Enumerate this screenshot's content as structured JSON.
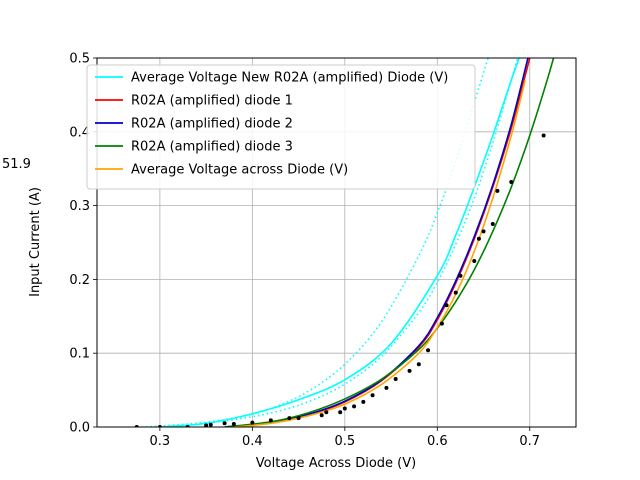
{
  "chart_data": {
    "type": "line",
    "title": "",
    "xlabel": "Voltage Across Diode (V)",
    "ylabel": "Input Current (A)",
    "side_annotation": "51.9",
    "xlim": [
      0.232,
      0.75
    ],
    "ylim": [
      0,
      0.5
    ],
    "xticks": [
      "0.3",
      "0.4",
      "0.5",
      "0.6",
      "0.7"
    ],
    "yticks": [
      "0.0",
      "0.1",
      "0.2",
      "0.3",
      "0.4",
      "0.5"
    ],
    "grid": true,
    "legend_position": "upper-left",
    "series": [
      {
        "name": "Average Voltage New R02A (amplified) Diode (V)",
        "color": "#00ffff",
        "style": "solid",
        "x": [
          0.3,
          0.35,
          0.4,
          0.45,
          0.5,
          0.55,
          0.6,
          0.62,
          0.64,
          0.66,
          0.68,
          0.69
        ],
        "y": [
          0.0,
          0.005,
          0.018,
          0.037,
          0.064,
          0.113,
          0.205,
          0.26,
          0.325,
          0.395,
          0.47,
          0.505
        ]
      },
      {
        "name": "R02A (amplified) diode 1",
        "color": "#ff0000",
        "style": "solid",
        "x": [
          0.38,
          0.42,
          0.46,
          0.5,
          0.54,
          0.58,
          0.6,
          0.62,
          0.64,
          0.66,
          0.68,
          0.7
        ],
        "y": [
          0.0,
          0.006,
          0.016,
          0.034,
          0.063,
          0.108,
          0.145,
          0.195,
          0.255,
          0.325,
          0.405,
          0.5
        ]
      },
      {
        "name": "R02A (amplified) diode 2",
        "color": "#0000cc",
        "style": "solid",
        "x": [
          0.38,
          0.42,
          0.46,
          0.5,
          0.54,
          0.58,
          0.6,
          0.62,
          0.64,
          0.66,
          0.68,
          0.698
        ],
        "y": [
          0.0,
          0.006,
          0.017,
          0.035,
          0.064,
          0.11,
          0.148,
          0.198,
          0.258,
          0.328,
          0.41,
          0.5
        ]
      },
      {
        "name": "R02A (amplified) diode 3",
        "color": "#008000",
        "style": "solid",
        "x": [
          0.37,
          0.42,
          0.46,
          0.5,
          0.54,
          0.58,
          0.6,
          0.62,
          0.64,
          0.66,
          0.68,
          0.7,
          0.72,
          0.73
        ],
        "y": [
          0.0,
          0.007,
          0.019,
          0.038,
          0.065,
          0.105,
          0.134,
          0.17,
          0.213,
          0.265,
          0.325,
          0.395,
          0.475,
          0.52
        ]
      },
      {
        "name": "Average Voltage across Diode (V)",
        "color": "#ffa500",
        "style": "solid",
        "x": [
          0.38,
          0.42,
          0.46,
          0.5,
          0.54,
          0.58,
          0.6,
          0.62,
          0.64,
          0.66,
          0.68,
          0.695
        ],
        "y": [
          0.0,
          0.005,
          0.015,
          0.031,
          0.058,
          0.1,
          0.135,
          0.18,
          0.238,
          0.31,
          0.395,
          0.47
        ]
      },
      {
        "name": "",
        "color": "#00ffff",
        "style": "dotted",
        "x": [
          0.28,
          0.33,
          0.38,
          0.42,
          0.46,
          0.5,
          0.54,
          0.58,
          0.6,
          0.62,
          0.64,
          0.66
        ],
        "y": [
          0.0,
          0.004,
          0.012,
          0.025,
          0.048,
          0.085,
          0.143,
          0.232,
          0.29,
          0.36,
          0.44,
          0.52
        ]
      },
      {
        "name": "",
        "color": "#00ffff",
        "style": "dotted",
        "x": [
          0.29,
          0.34,
          0.38,
          0.42,
          0.46,
          0.5,
          0.54,
          0.58,
          0.6,
          0.62,
          0.64,
          0.66,
          0.68,
          0.7
        ],
        "y": [
          0.0,
          0.004,
          0.01,
          0.019,
          0.034,
          0.058,
          0.096,
          0.155,
          0.196,
          0.248,
          0.31,
          0.385,
          0.47,
          0.56
        ]
      }
    ],
    "scatter": {
      "color": "#000000",
      "x": [
        0.275,
        0.3,
        0.33,
        0.35,
        0.355,
        0.37,
        0.38,
        0.4,
        0.42,
        0.44,
        0.45,
        0.475,
        0.48,
        0.495,
        0.5,
        0.51,
        0.52,
        0.53,
        0.545,
        0.555,
        0.57,
        0.58,
        0.59,
        0.605,
        0.61,
        0.62,
        0.625,
        0.64,
        0.645,
        0.65,
        0.66,
        0.665,
        0.68,
        0.715
      ],
      "y": [
        0.0,
        0.0,
        0.0,
        0.002,
        0.003,
        0.005,
        0.004,
        0.006,
        0.009,
        0.012,
        0.012,
        0.016,
        0.02,
        0.02,
        0.025,
        0.028,
        0.034,
        0.043,
        0.053,
        0.065,
        0.076,
        0.085,
        0.104,
        0.14,
        0.165,
        0.182,
        0.205,
        0.225,
        0.255,
        0.265,
        0.275,
        0.32,
        0.332,
        0.395
      ]
    }
  }
}
